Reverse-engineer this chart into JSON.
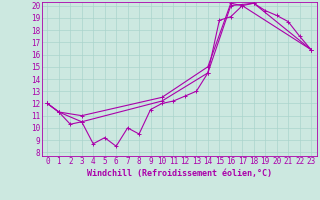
{
  "xlabel": "Windchill (Refroidissement éolien,°C)",
  "bg_color": "#cce8e0",
  "line_color": "#aa00aa",
  "grid_color": "#aad4cc",
  "xlim": [
    -0.5,
    23.5
  ],
  "ylim": [
    8,
    20
  ],
  "yticks": [
    8,
    9,
    10,
    11,
    12,
    13,
    14,
    15,
    16,
    17,
    18,
    19,
    20
  ],
  "xticks": [
    0,
    1,
    2,
    3,
    4,
    5,
    6,
    7,
    8,
    9,
    10,
    11,
    12,
    13,
    14,
    15,
    16,
    17,
    18,
    19,
    20,
    21,
    22,
    23
  ],
  "series1_x": [
    0,
    1,
    2,
    3,
    4,
    5,
    6,
    7,
    8,
    9,
    10,
    11,
    12,
    13,
    14,
    15,
    16,
    17,
    18,
    19,
    20,
    21,
    22,
    23
  ],
  "series1_y": [
    12.0,
    11.3,
    10.3,
    10.5,
    8.7,
    9.2,
    8.5,
    10.0,
    9.5,
    11.5,
    12.0,
    12.2,
    12.6,
    13.0,
    14.5,
    18.8,
    19.1,
    20.0,
    20.2,
    19.6,
    19.2,
    18.7,
    17.5,
    16.4
  ],
  "series2_x": [
    0,
    1,
    3,
    10,
    14,
    16,
    17,
    23
  ],
  "series2_y": [
    12.0,
    11.3,
    11.0,
    12.5,
    15.0,
    20.2,
    20.0,
    16.4
  ],
  "series3_x": [
    0,
    1,
    3,
    10,
    14,
    16,
    18,
    23
  ],
  "series3_y": [
    12.0,
    11.3,
    10.5,
    12.2,
    14.5,
    20.0,
    20.2,
    16.4
  ],
  "markersize": 3,
  "linewidth": 0.8,
  "tick_fontsize": 5.5,
  "xlabel_fontsize": 6.0
}
